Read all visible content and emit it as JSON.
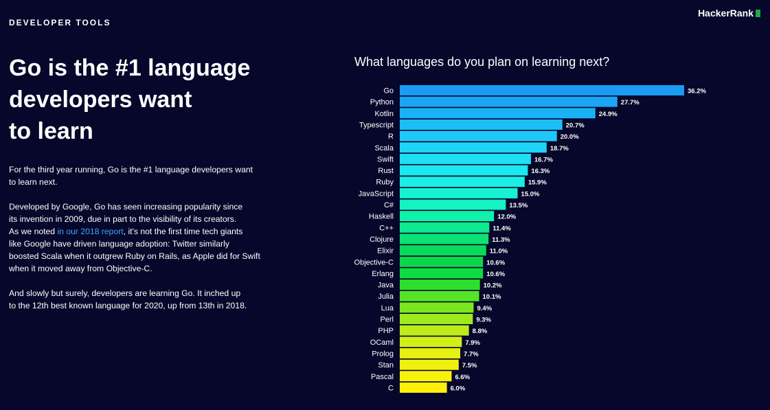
{
  "header": {
    "section_label": "DEVELOPER TOOLS",
    "brand": "HackerRank"
  },
  "article": {
    "headline_lines": [
      "Go is the #1 language",
      "developers want",
      "to learn"
    ],
    "p1_lines": [
      "For the third year running, Go is the #1 language developers want",
      "to learn next."
    ],
    "p2_line1": "Developed by Google, Go has seen increasing popularity since",
    "p2_line2": "its invention in 2009, due in part to the visibility of its creators.",
    "p2_line3_pre": "As we noted ",
    "p2_link": "in our 2018 report",
    "p2_line3_post": ", it's not the first time tech giants",
    "p2_line4": "like Google have driven language adoption: Twitter similarly",
    "p2_line5": "boosted Scala when it outgrew Ruby on Rails, as Apple did for Swift",
    "p2_line6": "when it moved away from Objective-C.",
    "p3_lines": [
      "And slowly but surely, developers are learning Go. It inched up",
      "to the 12th best known language for 2020, up from 13th in 2018."
    ]
  },
  "chart_data": {
    "type": "bar",
    "orientation": "horizontal",
    "title": "What languages do you plan on learning next?",
    "categories": [
      "Go",
      "Python",
      "Kotlin",
      "Typescript",
      "R",
      "Scala",
      "Swift",
      "Rust",
      "Ruby",
      "JavaScript",
      "C#",
      "Haskell",
      "C++",
      "Clojure",
      "Elixir",
      "Objective-C",
      "Erlang",
      "Java",
      "Julia",
      "Lua",
      "Perl",
      "PHP",
      "OCaml",
      "Prolog",
      "Stan",
      "Pascal",
      "C"
    ],
    "values": [
      36.2,
      27.7,
      24.9,
      20.7,
      20.0,
      18.7,
      16.7,
      16.3,
      15.9,
      15.0,
      13.5,
      12.0,
      11.4,
      11.3,
      11.0,
      10.6,
      10.6,
      10.2,
      10.1,
      9.4,
      9.3,
      8.8,
      7.9,
      7.7,
      7.5,
      6.6,
      6.0
    ],
    "value_labels": [
      "36.2%",
      "27.7%",
      "24.9%",
      "20.7%",
      "20.0%",
      "18.7%",
      "16.7%",
      "16.3%",
      "15.9%",
      "15.0%",
      "13.5%",
      "12.0%",
      "11.4%",
      "11.3%",
      "11.0%",
      "10.6%",
      "10.6%",
      "10.2%",
      "10.1%",
      "9.4%",
      "9.3%",
      "8.8%",
      "7.9%",
      "7.7%",
      "7.5%",
      "6.6%",
      "6.0%"
    ],
    "colors": [
      "#1a9cf2",
      "#1aa6f5",
      "#1ab2f7",
      "#1cbef7",
      "#1ec9f7",
      "#1fd4f6",
      "#1fdff5",
      "#1ce8ef",
      "#1aefe4",
      "#17f2d4",
      "#14f3c2",
      "#10f1ac",
      "#0dea90",
      "#0ce274",
      "#0bd95c",
      "#0ed64c",
      "#11db42",
      "#2ee02c",
      "#55e425",
      "#7ae720",
      "#9eea1c",
      "#bced1a",
      "#d4ef17",
      "#e6f013",
      "#f1f10f",
      "#f8f20b",
      "#fdf207"
    ],
    "ylim": [
      0,
      36.2
    ],
    "grid": false,
    "legend": "none"
  }
}
